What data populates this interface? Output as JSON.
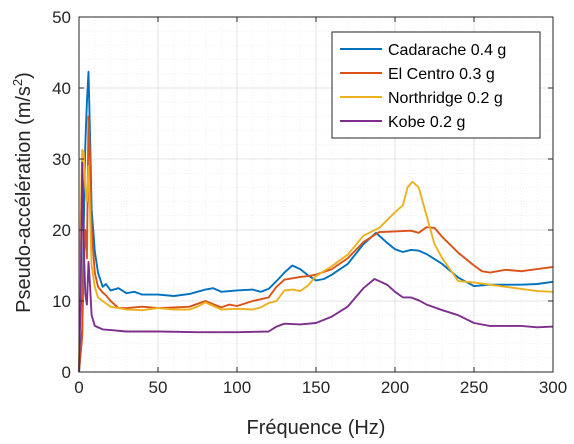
{
  "chart_data": {
    "type": "line",
    "xlabel": "Fréquence (Hz)",
    "ylabel": "Pseudo-accélération (m/s",
    "ylabel_sup": "2",
    "ylabel_end": ")",
    "xlim": [
      0,
      300
    ],
    "ylim": [
      0,
      50
    ],
    "xticks": [
      "0",
      "50",
      "100",
      "150",
      "200",
      "250",
      "300"
    ],
    "yticks": [
      "0",
      "10",
      "20",
      "30",
      "40",
      "50"
    ],
    "grid": "major and minor",
    "legend_position": "top-right",
    "series": [
      {
        "name": "Cadarache 0.4 g",
        "color": "#0072BD",
        "points": [
          [
            0,
            0
          ],
          [
            2,
            6
          ],
          [
            3,
            20
          ],
          [
            4,
            32
          ],
          [
            5,
            38
          ],
          [
            6,
            42.3
          ],
          [
            7,
            33
          ],
          [
            8,
            23
          ],
          [
            10,
            17
          ],
          [
            12,
            14
          ],
          [
            15,
            12
          ],
          [
            17,
            12.4
          ],
          [
            20,
            11.5
          ],
          [
            25,
            11.8
          ],
          [
            30,
            11.1
          ],
          [
            35,
            11.3
          ],
          [
            40,
            10.9
          ],
          [
            50,
            10.9
          ],
          [
            60,
            10.7
          ],
          [
            70,
            11
          ],
          [
            80,
            11.6
          ],
          [
            85,
            11.8
          ],
          [
            90,
            11.3
          ],
          [
            100,
            11.5
          ],
          [
            110,
            11.6
          ],
          [
            115,
            11.3
          ],
          [
            120,
            11.7
          ],
          [
            125,
            12.8
          ],
          [
            130,
            14
          ],
          [
            135,
            15
          ],
          [
            140,
            14.5
          ],
          [
            145,
            13.6
          ],
          [
            150,
            12.9
          ],
          [
            155,
            13.1
          ],
          [
            160,
            13.7
          ],
          [
            170,
            15.2
          ],
          [
            180,
            18
          ],
          [
            188,
            19.6
          ],
          [
            195,
            18.2
          ],
          [
            200,
            17.3
          ],
          [
            205,
            16.9
          ],
          [
            210,
            17.2
          ],
          [
            215,
            17.1
          ],
          [
            220,
            16.6
          ],
          [
            230,
            15.2
          ],
          [
            240,
            13.3
          ],
          [
            250,
            12.1
          ],
          [
            260,
            12.3
          ],
          [
            270,
            12.3
          ],
          [
            280,
            12.3
          ],
          [
            290,
            12.4
          ],
          [
            300,
            12.7
          ]
        ]
      },
      {
        "name": "El Centro 0.3 g",
        "color": "#D95319",
        "points": [
          [
            0,
            0
          ],
          [
            2,
            5
          ],
          [
            3,
            16
          ],
          [
            4,
            20
          ],
          [
            5,
            16
          ],
          [
            6,
            36
          ],
          [
            7,
            30
          ],
          [
            8,
            20
          ],
          [
            10,
            14
          ],
          [
            12,
            12
          ],
          [
            15,
            11.2
          ],
          [
            17,
            10.8
          ],
          [
            20,
            10
          ],
          [
            25,
            9
          ],
          [
            30,
            9
          ],
          [
            40,
            9.2
          ],
          [
            50,
            9
          ],
          [
            60,
            9.1
          ],
          [
            70,
            9.2
          ],
          [
            75,
            9.6
          ],
          [
            80,
            10
          ],
          [
            90,
            9.1
          ],
          [
            95,
            9.5
          ],
          [
            100,
            9.3
          ],
          [
            110,
            10
          ],
          [
            120,
            10.5
          ],
          [
            125,
            12
          ],
          [
            130,
            13
          ],
          [
            140,
            13.4
          ],
          [
            145,
            13.5
          ],
          [
            150,
            13.7
          ],
          [
            160,
            14.5
          ],
          [
            170,
            16
          ],
          [
            180,
            18.3
          ],
          [
            190,
            19.7
          ],
          [
            200,
            19.8
          ],
          [
            210,
            19.9
          ],
          [
            215,
            19.6
          ],
          [
            220,
            20.4
          ],
          [
            225,
            20.3
          ],
          [
            230,
            19
          ],
          [
            240,
            16.8
          ],
          [
            250,
            15
          ],
          [
            255,
            14.2
          ],
          [
            260,
            14
          ],
          [
            270,
            14.4
          ],
          [
            280,
            14.2
          ],
          [
            290,
            14.5
          ],
          [
            300,
            14.8
          ]
        ]
      },
      {
        "name": "Northridge 0.2 g",
        "color": "#EDB120",
        "points": [
          [
            0,
            0
          ],
          [
            1,
            20
          ],
          [
            2,
            31.3
          ],
          [
            3,
            31
          ],
          [
            4,
            26
          ],
          [
            5,
            24
          ],
          [
            6,
            29
          ],
          [
            7,
            22
          ],
          [
            8,
            15
          ],
          [
            10,
            12
          ],
          [
            12,
            10.5
          ],
          [
            15,
            10
          ],
          [
            20,
            9.2
          ],
          [
            30,
            8.8
          ],
          [
            40,
            8.7
          ],
          [
            50,
            9
          ],
          [
            60,
            8.8
          ],
          [
            70,
            8.8
          ],
          [
            75,
            9.2
          ],
          [
            80,
            9.8
          ],
          [
            85,
            9.3
          ],
          [
            90,
            8.8
          ],
          [
            100,
            8.9
          ],
          [
            110,
            8.8
          ],
          [
            115,
            9.1
          ],
          [
            120,
            9.7
          ],
          [
            125,
            10
          ],
          [
            130,
            11.5
          ],
          [
            135,
            11.6
          ],
          [
            140,
            11.4
          ],
          [
            145,
            12.2
          ],
          [
            150,
            13.5
          ],
          [
            160,
            14.9
          ],
          [
            170,
            16.5
          ],
          [
            180,
            19.2
          ],
          [
            190,
            20.3
          ],
          [
            200,
            22.5
          ],
          [
            205,
            23.5
          ],
          [
            208,
            26
          ],
          [
            211,
            26.8
          ],
          [
            215,
            26
          ],
          [
            220,
            22
          ],
          [
            225,
            18
          ],
          [
            230,
            16
          ],
          [
            240,
            12.8
          ],
          [
            250,
            12.6
          ],
          [
            260,
            12.3
          ],
          [
            270,
            12
          ],
          [
            280,
            11.7
          ],
          [
            290,
            11.4
          ],
          [
            300,
            11.3
          ]
        ]
      },
      {
        "name": "Kobe 0.2 g",
        "color": "#7E2F8E",
        "points": [
          [
            0,
            0
          ],
          [
            1,
            10
          ],
          [
            2,
            29.5
          ],
          [
            3,
            18
          ],
          [
            4,
            11
          ],
          [
            5,
            9.5
          ],
          [
            6,
            15.5
          ],
          [
            7,
            12
          ],
          [
            8,
            8
          ],
          [
            10,
            6.5
          ],
          [
            15,
            6
          ],
          [
            20,
            5.9
          ],
          [
            30,
            5.7
          ],
          [
            50,
            5.7
          ],
          [
            75,
            5.6
          ],
          [
            100,
            5.6
          ],
          [
            120,
            5.7
          ],
          [
            125,
            6.4
          ],
          [
            130,
            6.8
          ],
          [
            140,
            6.7
          ],
          [
            150,
            6.9
          ],
          [
            160,
            7.8
          ],
          [
            170,
            9.2
          ],
          [
            180,
            11.8
          ],
          [
            187,
            13.1
          ],
          [
            195,
            12.3
          ],
          [
            200,
            11.3
          ],
          [
            205,
            10.5
          ],
          [
            210,
            10.5
          ],
          [
            215,
            10.1
          ],
          [
            220,
            9.5
          ],
          [
            230,
            8.7
          ],
          [
            240,
            8
          ],
          [
            250,
            6.9
          ],
          [
            260,
            6.5
          ],
          [
            270,
            6.5
          ],
          [
            280,
            6.5
          ],
          [
            290,
            6.3
          ],
          [
            300,
            6.4
          ]
        ]
      }
    ]
  }
}
